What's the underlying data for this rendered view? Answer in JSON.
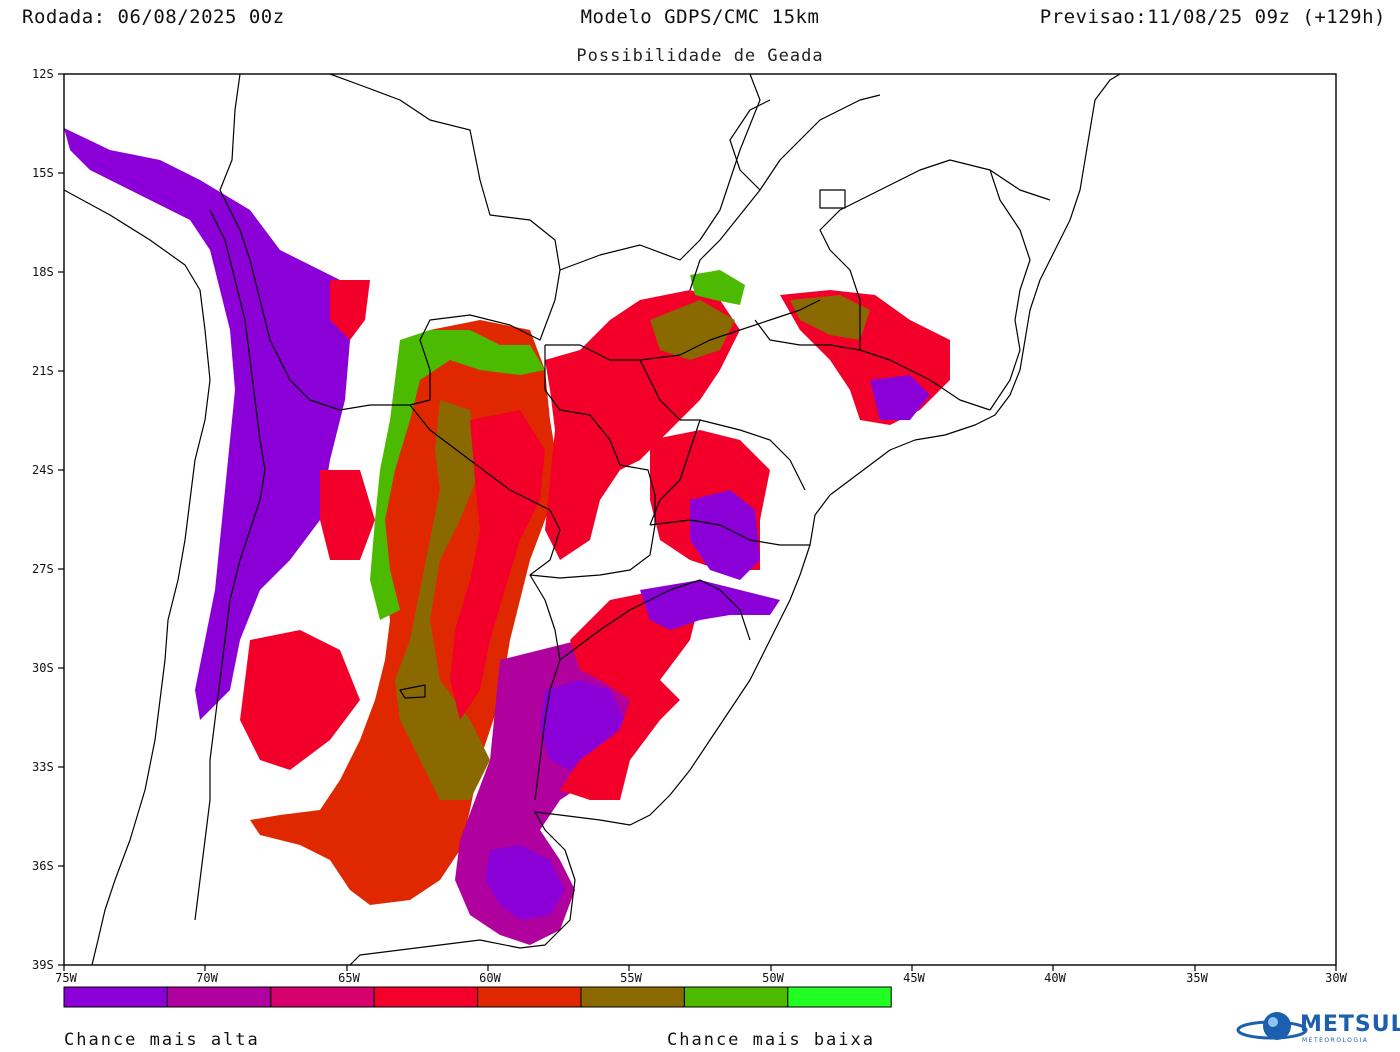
{
  "header": {
    "run": "Rodada: 06/08/2025 00z",
    "model": "Modelo GDPS/CMC 15km",
    "valid": "Previsao:11/08/25 09z (+129h)",
    "subtitle": "Possibilidade de Geada"
  },
  "axes": {
    "lat_labels": [
      "12S",
      "15S",
      "18S",
      "21S",
      "24S",
      "27S",
      "30S",
      "33S",
      "36S",
      "39S"
    ],
    "lon_labels": [
      "75W",
      "70W",
      "65W",
      "60W",
      "55W",
      "50W",
      "45W",
      "40W",
      "35W",
      "30W"
    ]
  },
  "legend": {
    "colors": [
      "#8a00d6",
      "#b0009e",
      "#d6006e",
      "#f2002a",
      "#e02800",
      "#8a6a00",
      "#4cba00",
      "#22ff22"
    ],
    "high_label": "Chance mais alta",
    "low_label": "Chance mais baixa"
  },
  "logo": {
    "text": "METSUL",
    "subtext": "METEOROLOGIA"
  }
}
